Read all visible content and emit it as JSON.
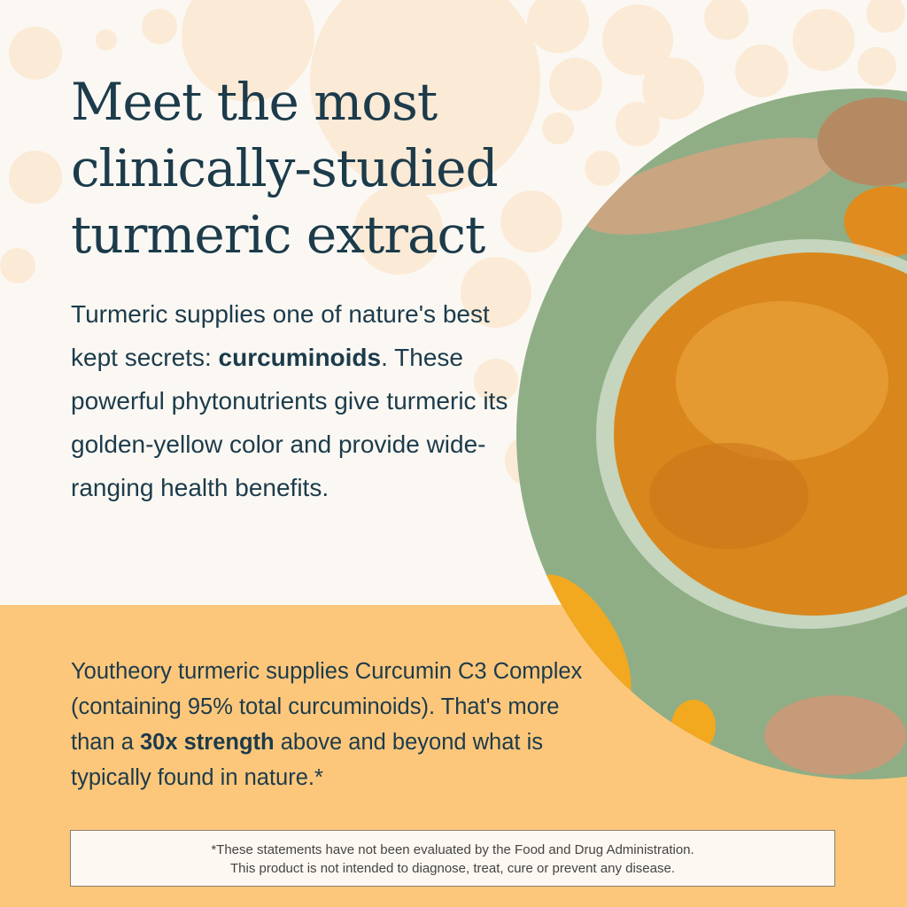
{
  "headline": {
    "line1": "Meet the most",
    "line2": "clinically-studied",
    "line3": "turmeric extract"
  },
  "intro": {
    "before": "Turmeric supplies one of nature's best kept secrets: ",
    "bold": "curcuminoids",
    "after": ". These powerful phytonutrients give turmeric its golden-yellow color and provide wide-ranging health benefits."
  },
  "strength": {
    "before": "Youtheory turmeric supplies Curcumin C3 Complex (containing 95% total curcuminoids). That's more than a ",
    "bold": "30x strength",
    "after": " above and beyond what is typically found in nature.*"
  },
  "disclaimer": {
    "line1": "*These statements have not been evaluated by the Food and Drug Administration.",
    "line2": "This product is not intended to diagnose, treat, cure or prevent any disease."
  },
  "colors": {
    "text": "#1c3b4b",
    "band": "#fdc77b",
    "background": "#fbf8f3",
    "green": "#8fae86",
    "turmeric": "#e0901c"
  }
}
